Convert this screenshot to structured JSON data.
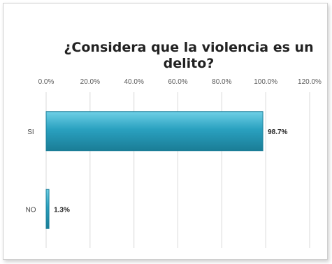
{
  "chart_data": {
    "type": "bar",
    "orientation": "horizontal",
    "title_lines": [
      "¿Considera que la violencia es un",
      "delito?"
    ],
    "categories": [
      "SI",
      "NO"
    ],
    "values": [
      98.7,
      1.3
    ],
    "data_labels": [
      "98.7%",
      "1.3%"
    ],
    "xticks": [
      "0.0%",
      "20.0%",
      "40.0%",
      "60.0%",
      "80.0%",
      "100.0%",
      "120.0%"
    ],
    "xlim": [
      0,
      120
    ],
    "grid": true,
    "legend": "none",
    "bar_color": "#2aa1c0",
    "bar_edge_color": "#1c7f98"
  }
}
